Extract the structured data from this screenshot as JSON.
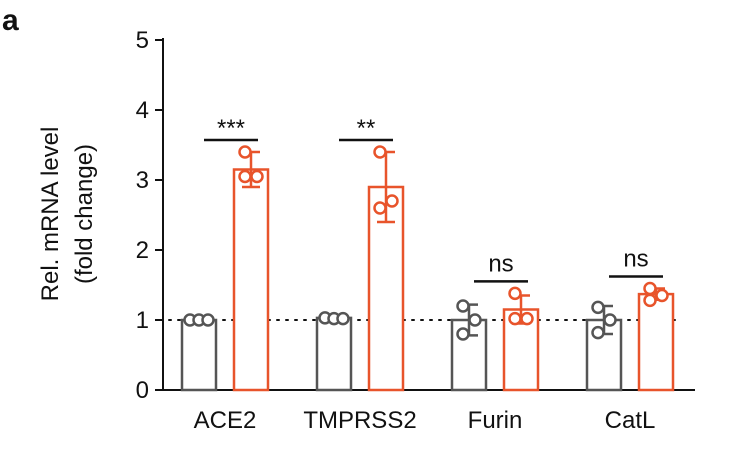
{
  "panel_label": "a",
  "chart_data": {
    "type": "bar",
    "title": "",
    "xlabel": "",
    "ylabel_line1": "Rel. mRNA level",
    "ylabel_line2": "(fold change)",
    "ylim": [
      0,
      5
    ],
    "yticks": [
      "0",
      "1",
      "2",
      "3",
      "4",
      "5"
    ],
    "categories": [
      "ACE2",
      "TMPRSS2",
      "Furin",
      "CatL"
    ],
    "reference_line": 1,
    "colors": {
      "control": "#555555",
      "treated": "#e8542b"
    },
    "series": [
      {
        "values": [
          1.0,
          1.03,
          1.0,
          1.0
        ],
        "error": [
          0.02,
          0.03,
          0.22,
          0.2
        ],
        "points": [
          [
            1.0,
            1.0,
            1.0
          ],
          [
            1.03,
            1.02,
            1.02
          ],
          [
            1.2,
            1.0,
            0.8
          ],
          [
            1.18,
            1.0,
            0.82
          ]
        ]
      },
      {
        "values": [
          3.15,
          2.9,
          1.15,
          1.37
        ],
        "error": [
          0.25,
          0.5,
          0.2,
          0.08
        ],
        "points": [
          [
            3.4,
            3.05,
            3.05
          ],
          [
            3.4,
            2.7,
            2.6
          ],
          [
            1.38,
            1.02,
            1.02
          ],
          [
            1.45,
            1.35,
            1.28
          ]
        ]
      }
    ],
    "significance": [
      "***",
      "**",
      "ns",
      "ns"
    ]
  }
}
